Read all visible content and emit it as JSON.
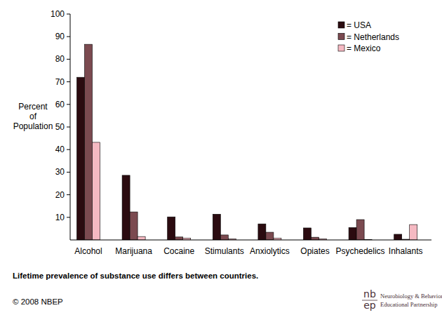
{
  "chart_data": {
    "type": "bar",
    "categories": [
      "Alcohol",
      "Marijuana",
      "Cocaine",
      "Stimulants",
      "Anxiolytics",
      "Opiates",
      "Psychedelics",
      "Inhalants"
    ],
    "series": [
      {
        "name": "= USA",
        "color": "#2b0b10",
        "values": [
          72,
          28.6,
          10.2,
          11.4,
          7.1,
          5.3,
          5.5,
          2.5
        ]
      },
      {
        "name": "= Netherlands",
        "color": "#7b4a50",
        "values": [
          86.6,
          12.4,
          1.3,
          2.2,
          3.4,
          1.2,
          9,
          0.3
        ]
      },
      {
        "name": "= Mexico",
        "color": "#f5b9c2",
        "values": [
          43.2,
          1.5,
          0.8,
          0.5,
          0.8,
          0.5,
          0.1,
          6.8
        ]
      }
    ],
    "ylabel": "Percent of Population",
    "ylim": [
      0,
      100
    ],
    "yticks": [
      10,
      20,
      30,
      40,
      50,
      60,
      70,
      80,
      90,
      100
    ],
    "legend": "top-right",
    "grid": false,
    "caption": "Lifetime prevalence of substance use differs between countries.",
    "annotations": [
      "© 2008 NBEP",
      "nb",
      "ep",
      "Neurobiology & Behavior",
      "Educational Partnership"
    ]
  }
}
